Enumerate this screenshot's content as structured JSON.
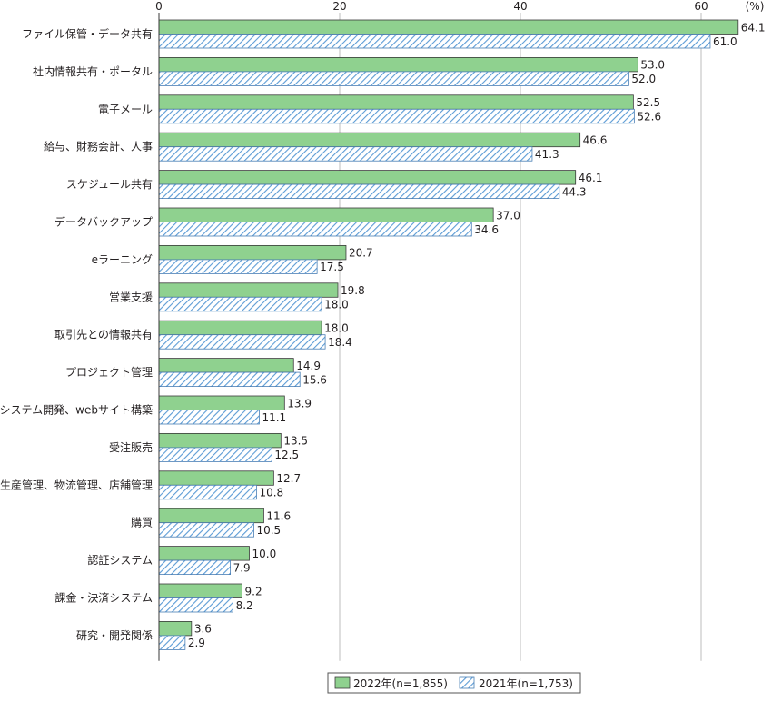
{
  "chart_data": {
    "type": "bar",
    "orientation": "horizontal",
    "unit_label": "(%)",
    "xlim": [
      0,
      64
    ],
    "x_ticks": [
      0,
      20,
      40,
      60
    ],
    "grid": true,
    "legend_position": "bottom-right",
    "categories": [
      "ファイル保管・データ共有",
      "社内情報共有・ポータル",
      "電子メール",
      "給与、財務会計、人事",
      "スケジュール共有",
      "データバックアップ",
      "eラーニング",
      "営業支援",
      "取引先との情報共有",
      "プロジェクト管理",
      "システム開発、webサイト構築",
      "受注販売",
      "生産管理、物流管理、店舗管理",
      "購買",
      "認証システム",
      "課金・決済システム",
      "研究・開発関係"
    ],
    "series": [
      {
        "name": "2022年(n=1,855)",
        "color": "#8fd18f",
        "pattern": "solid",
        "values": [
          64.1,
          53.0,
          52.5,
          46.6,
          46.1,
          37.0,
          20.7,
          19.8,
          18.0,
          14.9,
          13.9,
          13.5,
          12.7,
          11.6,
          10.0,
          9.2,
          3.6
        ]
      },
      {
        "name": "2021年(n=1,753)",
        "color": "#5b9bd5",
        "pattern": "hatched",
        "values": [
          61.0,
          52.0,
          52.6,
          41.3,
          44.3,
          34.6,
          17.5,
          18.0,
          18.4,
          15.6,
          11.1,
          12.5,
          10.8,
          10.5,
          7.9,
          8.2,
          2.9
        ]
      }
    ]
  }
}
